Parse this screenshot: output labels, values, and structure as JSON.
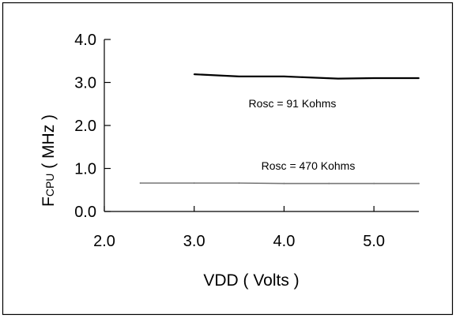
{
  "chart_data": {
    "type": "line",
    "title": "",
    "xlabel": "VDD ( Volts )",
    "ylabel_main": "F",
    "ylabel_sub": "CPU",
    "ylabel_unit": " ( MHz )",
    "xlim": [
      2.0,
      5.5
    ],
    "ylim": [
      0.0,
      4.0
    ],
    "x_ticks": [
      "2.0",
      "3.0",
      "4.0",
      "5.0"
    ],
    "y_ticks": [
      "0.0",
      "1.0",
      "2.0",
      "3.0",
      "4.0"
    ],
    "grid": false,
    "series": [
      {
        "name": "Rosc = 91 Kohms",
        "color": "#000000",
        "x": [
          3.0,
          3.5,
          4.0,
          4.6,
          5.0,
          5.5
        ],
        "y": [
          3.19,
          3.14,
          3.14,
          3.09,
          3.1,
          3.1
        ]
      },
      {
        "name": "Rosc = 470 Kohms",
        "color": "#777777",
        "x": [
          2.4,
          3.0,
          3.5,
          4.0,
          4.5,
          5.0,
          5.5
        ],
        "y": [
          0.66,
          0.66,
          0.66,
          0.65,
          0.65,
          0.65,
          0.65
        ]
      }
    ]
  }
}
